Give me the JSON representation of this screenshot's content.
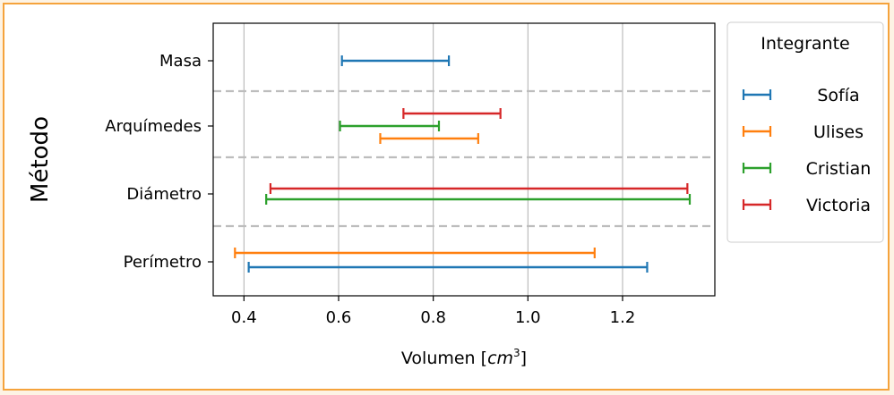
{
  "chart_data": {
    "type": "range",
    "xlabel": "Volumen [cm³]",
    "xlabel_parts": {
      "base": "Volumen [",
      "unit": "cm",
      "exp": "3",
      "close": "]"
    },
    "ylabel": "Método",
    "xlim": [
      0.335,
      1.395
    ],
    "xticks": [
      0.4,
      0.6,
      0.8,
      1.0,
      1.2
    ],
    "xtick_labels": [
      "0.4",
      "0.6",
      "0.8",
      "1.0",
      "1.2"
    ],
    "categories": [
      "Masa",
      "Arquímedes",
      "Diámetro",
      "Perímetro"
    ],
    "grid_x": true,
    "legend": {
      "title": "Integrante",
      "placement": "outside-right-top",
      "entries": [
        {
          "name": "Sofía",
          "color": "#1f77b4"
        },
        {
          "name": "Ulises",
          "color": "#ff7f0e"
        },
        {
          "name": "Cristian",
          "color": "#2ca02c"
        },
        {
          "name": "Victoria",
          "color": "#d62728"
        }
      ]
    },
    "intervals": [
      {
        "category": "Masa",
        "series": "Sofía",
        "low": 0.607,
        "high": 0.833
      },
      {
        "category": "Arquímedes",
        "series": "Victoria",
        "low": 0.737,
        "high": 0.942
      },
      {
        "category": "Arquímedes",
        "series": "Cristian",
        "low": 0.603,
        "high": 0.812
      },
      {
        "category": "Arquímedes",
        "series": "Ulises",
        "low": 0.688,
        "high": 0.895
      },
      {
        "category": "Diámetro",
        "series": "Victoria",
        "low": 0.456,
        "high": 1.337
      },
      {
        "category": "Diámetro",
        "series": "Cristian",
        "low": 0.447,
        "high": 1.342
      },
      {
        "category": "Perímetro",
        "series": "Ulises",
        "low": 0.381,
        "high": 1.141
      },
      {
        "category": "Perímetro",
        "series": "Sofía",
        "low": 0.41,
        "high": 1.252
      }
    ]
  }
}
